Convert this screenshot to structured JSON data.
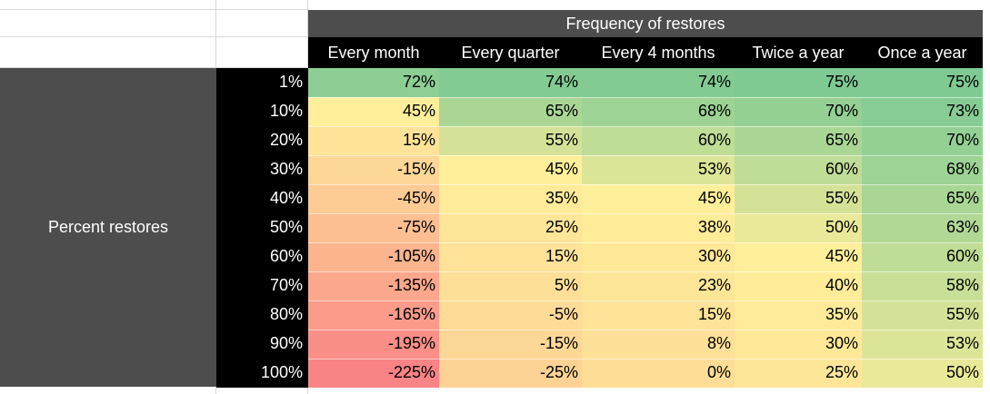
{
  "table": {
    "top_header": "Frequency of restores",
    "side_header": "Percent restores",
    "columns": [
      "Every month",
      "Every quarter",
      "Every 4 months",
      "Twice a year",
      "Once a year"
    ],
    "rows": [
      {
        "label": "1%",
        "values": [
          "72%",
          "74%",
          "74%",
          "75%",
          "75%"
        ]
      },
      {
        "label": "10%",
        "values": [
          "45%",
          "65%",
          "68%",
          "70%",
          "73%"
        ]
      },
      {
        "label": "20%",
        "values": [
          "15%",
          "55%",
          "60%",
          "65%",
          "70%"
        ]
      },
      {
        "label": "30%",
        "values": [
          "-15%",
          "45%",
          "53%",
          "60%",
          "68%"
        ]
      },
      {
        "label": "40%",
        "values": [
          "-45%",
          "35%",
          "45%",
          "55%",
          "65%"
        ]
      },
      {
        "label": "50%",
        "values": [
          "-75%",
          "25%",
          "38%",
          "50%",
          "63%"
        ]
      },
      {
        "label": "60%",
        "values": [
          "-105%",
          "15%",
          "30%",
          "45%",
          "60%"
        ]
      },
      {
        "label": "70%",
        "values": [
          "-135%",
          "5%",
          "23%",
          "40%",
          "58%"
        ]
      },
      {
        "label": "80%",
        "values": [
          "-165%",
          "-5%",
          "15%",
          "35%",
          "55%"
        ]
      },
      {
        "label": "90%",
        "values": [
          "-195%",
          "-15%",
          "8%",
          "30%",
          "53%"
        ]
      },
      {
        "label": "100%",
        "values": [
          "-225%",
          "-25%",
          "0%",
          "25%",
          "50%"
        ]
      }
    ]
  },
  "color_scale": {
    "low": "#f8696b",
    "mid": "#ffeb84",
    "high": "#63be7b"
  }
}
